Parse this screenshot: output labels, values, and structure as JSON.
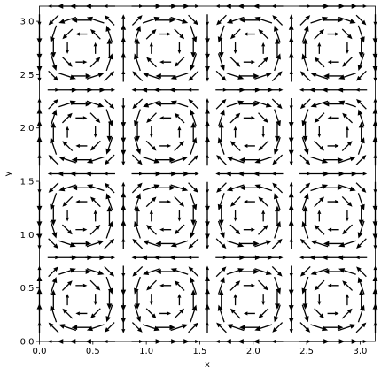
{
  "chart_data": {
    "type": "quiver",
    "title": "",
    "xlabel": "x",
    "ylabel": "y",
    "xlim": [
      0.0,
      3.14159
    ],
    "ylim": [
      0.0,
      3.14159
    ],
    "grid": false,
    "legend": "none",
    "field": {
      "u": "-sin(4x)*cos(4y)",
      "v": "cos(4x)*sin(4y)",
      "grid_points_per_axis": 25,
      "x_range": [
        0.0,
        3.14159
      ],
      "y_range": [
        0.0,
        3.14159
      ]
    },
    "arrow_color": "#000000",
    "x_ticks": [
      {
        "value": 0.0,
        "label": "0.0"
      },
      {
        "value": 0.5,
        "label": "0.5"
      },
      {
        "value": 1.0,
        "label": "1.0"
      },
      {
        "value": 1.5,
        "label": "1.5"
      },
      {
        "value": 2.0,
        "label": "2.0"
      },
      {
        "value": 2.5,
        "label": "2.5"
      },
      {
        "value": 3.0,
        "label": "3.0"
      }
    ],
    "y_ticks": [
      {
        "value": 0.0,
        "label": "0.0"
      },
      {
        "value": 0.5,
        "label": "0.5"
      },
      {
        "value": 1.0,
        "label": "1.0"
      },
      {
        "value": 1.5,
        "label": "1.5"
      },
      {
        "value": 2.0,
        "label": "2.0"
      },
      {
        "value": 2.5,
        "label": "2.5"
      },
      {
        "value": 3.0,
        "label": "3.0"
      }
    ]
  }
}
